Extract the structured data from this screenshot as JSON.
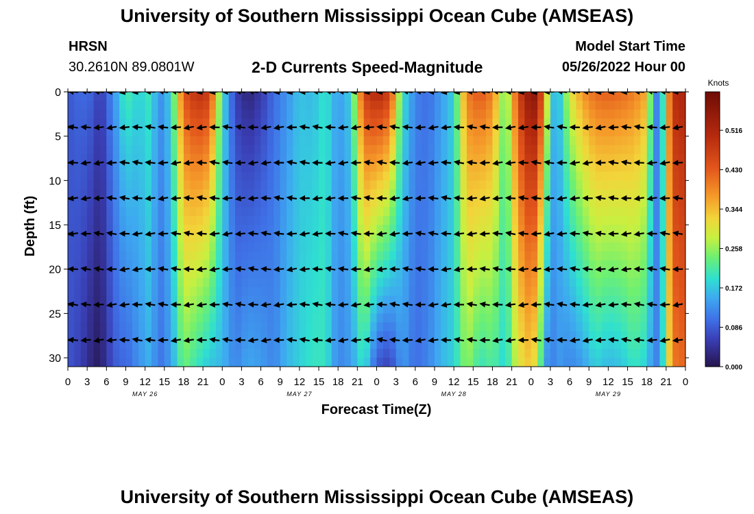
{
  "page_title": "University of Southern Mississippi Ocean Cube (AMSEAS)",
  "footer_title": "University of Southern Mississippi Ocean Cube (AMSEAS)",
  "station": {
    "name": "HRSN",
    "coords": "30.2610N  89.0801W"
  },
  "subtitle": "2-D Currents Speed-Magnitude",
  "model_start": {
    "label": "Model Start Time",
    "value": "05/26/2022 Hour 00"
  },
  "chart_data": {
    "type": "heatmap",
    "title": "2-D Currents Speed-Magnitude",
    "xlabel": "Forecast Time(Z)",
    "ylabel": "Depth (ft)",
    "xlim": [
      0,
      96
    ],
    "ylim": [
      31,
      0
    ],
    "x_tick_values": [
      0,
      3,
      6,
      9,
      12,
      15,
      18,
      21,
      24,
      27,
      30,
      33,
      36,
      39,
      42,
      45,
      48,
      51,
      54,
      57,
      60,
      63,
      66,
      69,
      72,
      75,
      78,
      81,
      84,
      87,
      90,
      93,
      96
    ],
    "x_tick_labels": [
      "0",
      "3",
      "6",
      "9",
      "12",
      "15",
      "18",
      "21",
      "0",
      "3",
      "6",
      "9",
      "12",
      "15",
      "18",
      "21",
      "0",
      "3",
      "6",
      "9",
      "12",
      "15",
      "18",
      "21",
      "0",
      "3",
      "6",
      "9",
      "12",
      "15",
      "18",
      "21",
      "0"
    ],
    "date_labels": [
      {
        "text": "MAY 26",
        "x": 12
      },
      {
        "text": "MAY 27",
        "x": 36
      },
      {
        "text": "MAY 28",
        "x": 60
      },
      {
        "text": "MAY 29",
        "x": 84
      }
    ],
    "y_ticks": [
      0,
      5,
      10,
      15,
      20,
      25,
      30
    ],
    "colorbar": {
      "label": "Knots",
      "range": [
        0,
        0.6
      ],
      "ticks": [
        "0.516",
        "0.430",
        "0.344",
        "0.258",
        "0.172",
        "0.086",
        "0.000"
      ],
      "tick_values": [
        0.516,
        0.43,
        0.344,
        0.258,
        0.172,
        0.086,
        0.0
      ]
    },
    "speed_profile": {
      "hours": [
        0,
        2,
        4,
        5,
        6,
        8,
        9,
        11,
        13,
        14,
        16,
        18,
        20,
        22,
        24,
        26,
        28,
        30,
        32,
        34,
        36,
        38,
        40,
        42,
        44,
        46,
        48,
        50,
        52,
        54,
        56,
        58,
        60,
        62,
        64,
        66,
        68,
        70,
        72,
        73,
        74,
        75,
        76,
        78,
        80,
        82,
        84,
        86,
        88,
        90,
        91,
        92,
        94,
        96
      ],
      "surface_knots": [
        0.08,
        0.1,
        0.09,
        0.05,
        0.09,
        0.17,
        0.22,
        0.18,
        0.21,
        0.12,
        0.18,
        0.44,
        0.5,
        0.48,
        0.2,
        0.06,
        0.02,
        0.05,
        0.1,
        0.13,
        0.17,
        0.16,
        0.2,
        0.14,
        0.18,
        0.47,
        0.52,
        0.48,
        0.2,
        0.12,
        0.1,
        0.14,
        0.18,
        0.4,
        0.44,
        0.4,
        0.22,
        0.46,
        0.58,
        0.55,
        0.4,
        0.2,
        0.14,
        0.3,
        0.38,
        0.42,
        0.43,
        0.42,
        0.4,
        0.36,
        0.14,
        0.1,
        0.5,
        0.52
      ],
      "bottom_knots": [
        0.08,
        0.06,
        0.02,
        0.01,
        0.05,
        0.1,
        0.09,
        0.13,
        0.16,
        0.1,
        0.14,
        0.24,
        0.2,
        0.17,
        0.16,
        0.12,
        0.15,
        0.14,
        0.12,
        0.16,
        0.18,
        0.2,
        0.2,
        0.12,
        0.14,
        0.2,
        0.08,
        0.06,
        0.14,
        0.1,
        0.12,
        0.16,
        0.18,
        0.26,
        0.2,
        0.22,
        0.18,
        0.3,
        0.34,
        0.28,
        0.16,
        0.1,
        0.14,
        0.12,
        0.14,
        0.18,
        0.16,
        0.17,
        0.2,
        0.18,
        0.12,
        0.12,
        0.4,
        0.42
      ]
    },
    "vectors": {
      "depths_ft": [
        0,
        4,
        8,
        12,
        16,
        20,
        24,
        28
      ],
      "hours": [
        0,
        1,
        3,
        5,
        7,
        9,
        11,
        13,
        15,
        17,
        19,
        21,
        23,
        25,
        27,
        29,
        31,
        33,
        35,
        37,
        39,
        41,
        43,
        45,
        47,
        49,
        51,
        53,
        55,
        57,
        59,
        61,
        63,
        65,
        67,
        69,
        71,
        73,
        75,
        77,
        79,
        81,
        83,
        85,
        87,
        89,
        91,
        93,
        95
      ]
    }
  }
}
